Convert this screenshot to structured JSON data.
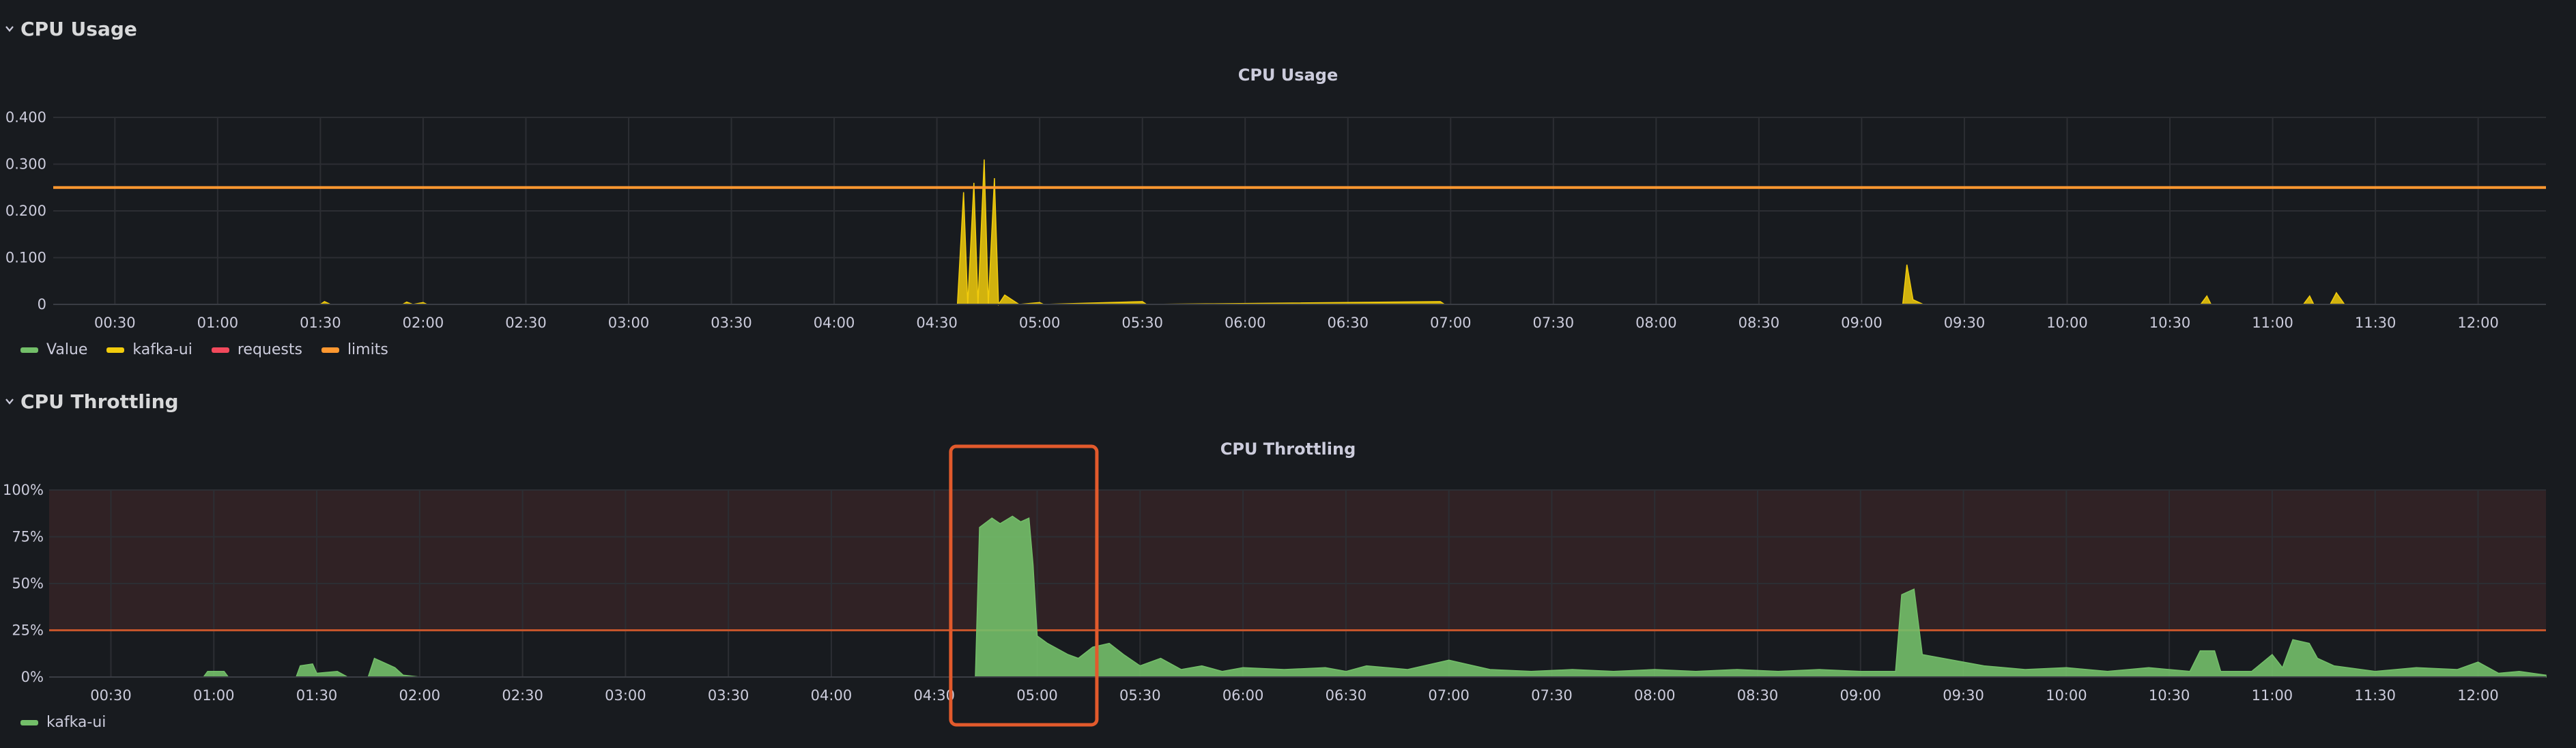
{
  "rows": [
    {
      "title": "CPU Usage"
    },
    {
      "title": "CPU Throttling"
    }
  ],
  "panels": [
    {
      "title": "CPU Usage",
      "legend": [
        {
          "label": "Value",
          "color": "#73bf69"
        },
        {
          "label": "kafka-ui",
          "color": "#f2cc0c"
        },
        {
          "label": "requests",
          "color": "#f2495c"
        },
        {
          "label": "limits",
          "color": "#ff9830"
        }
      ]
    },
    {
      "title": "CPU Throttling",
      "legend": [
        {
          "label": "kafka-ui",
          "color": "#73bf69"
        }
      ]
    }
  ],
  "chart_data": [
    {
      "type": "area",
      "title": "CPU Usage",
      "x_ticks": [
        "00:30",
        "01:00",
        "01:30",
        "02:00",
        "02:30",
        "03:00",
        "03:30",
        "04:00",
        "04:30",
        "05:00",
        "05:30",
        "06:00",
        "06:30",
        "07:00",
        "07:30",
        "08:00",
        "08:30",
        "09:00",
        "09:30",
        "10:00",
        "10:30",
        "11:00",
        "11:30",
        "12:00"
      ],
      "y_ticks": [
        "0",
        "0.100",
        "0.200",
        "0.300",
        "0.400"
      ],
      "ylim": [
        0,
        0.4
      ],
      "xlim_hours": [
        0.2,
        12.33
      ],
      "grid": true,
      "legend_placement": "bottom-left",
      "series": [
        {
          "name": "kafka-ui",
          "color": "#f2cc0c",
          "points": [
            [
              0.2,
              0
            ],
            [
              1.5,
              0
            ],
            [
              1.52,
              0.006
            ],
            [
              1.55,
              0
            ],
            [
              1.9,
              0
            ],
            [
              1.92,
              0.005
            ],
            [
              1.95,
              0
            ],
            [
              2.0,
              0.004
            ],
            [
              2.02,
              0
            ],
            [
              4.6,
              0
            ],
            [
              4.63,
              0.24
            ],
            [
              4.65,
              0
            ],
            [
              4.68,
              0.26
            ],
            [
              4.7,
              0
            ],
            [
              4.73,
              0.31
            ],
            [
              4.75,
              0
            ],
            [
              4.78,
              0.27
            ],
            [
              4.8,
              0
            ],
            [
              4.83,
              0.02
            ],
            [
              4.9,
              0
            ],
            [
              5.0,
              0.004
            ],
            [
              5.02,
              0
            ],
            [
              5.5,
              0.006
            ],
            [
              5.52,
              0
            ],
            [
              6.95,
              0.006
            ],
            [
              6.97,
              0
            ],
            [
              9.2,
              0
            ],
            [
              9.22,
              0.085
            ],
            [
              9.25,
              0.01
            ],
            [
              9.3,
              0
            ],
            [
              10.65,
              0
            ],
            [
              10.68,
              0.018
            ],
            [
              10.7,
              0
            ],
            [
              11.15,
              0
            ],
            [
              11.18,
              0.018
            ],
            [
              11.2,
              0
            ],
            [
              11.28,
              0
            ],
            [
              11.31,
              0.025
            ],
            [
              11.35,
              0
            ],
            [
              12.33,
              0
            ]
          ]
        },
        {
          "name": "limits",
          "color": "#ff9830",
          "points": [
            [
              0.2,
              0.25
            ],
            [
              12.33,
              0.25
            ]
          ]
        }
      ]
    },
    {
      "type": "area",
      "title": "CPU Throttling",
      "x_ticks": [
        "00:30",
        "01:00",
        "01:30",
        "02:00",
        "02:30",
        "03:00",
        "03:30",
        "04:00",
        "04:30",
        "05:00",
        "05:30",
        "06:00",
        "06:30",
        "07:00",
        "07:30",
        "08:00",
        "08:30",
        "09:00",
        "09:30",
        "10:00",
        "10:30",
        "11:00",
        "11:30",
        "12:00"
      ],
      "y_ticks": [
        "0%",
        "25%",
        "50%",
        "75%",
        "100%"
      ],
      "ylim": [
        0,
        100
      ],
      "xlim_hours": [
        0.2,
        12.33
      ],
      "threshold": 25,
      "grid": true,
      "legend_placement": "bottom-left",
      "highlight_range_hours": [
        4.6,
        5.27
      ],
      "series": [
        {
          "name": "kafka-ui",
          "color": "#73bf69",
          "points": [
            [
              0.2,
              0
            ],
            [
              0.95,
              0
            ],
            [
              0.97,
              3
            ],
            [
              1.05,
              3
            ],
            [
              1.07,
              0
            ],
            [
              1.4,
              0
            ],
            [
              1.42,
              6
            ],
            [
              1.48,
              7
            ],
            [
              1.5,
              2
            ],
            [
              1.6,
              3
            ],
            [
              1.65,
              0
            ],
            [
              1.75,
              0
            ],
            [
              1.78,
              10
            ],
            [
              1.82,
              8
            ],
            [
              1.88,
              5
            ],
            [
              1.92,
              1
            ],
            [
              2.0,
              0
            ],
            [
              4.7,
              0
            ],
            [
              4.72,
              80
            ],
            [
              4.78,
              85
            ],
            [
              4.82,
              82
            ],
            [
              4.88,
              86
            ],
            [
              4.92,
              83
            ],
            [
              4.96,
              85
            ],
            [
              4.98,
              60
            ],
            [
              5.0,
              22
            ],
            [
              5.05,
              18
            ],
            [
              5.1,
              15
            ],
            [
              5.15,
              12
            ],
            [
              5.2,
              10
            ],
            [
              5.27,
              16
            ],
            [
              5.35,
              18
            ],
            [
              5.42,
              12
            ],
            [
              5.5,
              6
            ],
            [
              5.6,
              10
            ],
            [
              5.7,
              4
            ],
            [
              5.8,
              6
            ],
            [
              5.9,
              3
            ],
            [
              6.0,
              5
            ],
            [
              6.2,
              4
            ],
            [
              6.4,
              5
            ],
            [
              6.5,
              3
            ],
            [
              6.6,
              6
            ],
            [
              6.8,
              4
            ],
            [
              7.0,
              9
            ],
            [
              7.2,
              4
            ],
            [
              7.4,
              3
            ],
            [
              7.6,
              4
            ],
            [
              7.8,
              3
            ],
            [
              8.0,
              4
            ],
            [
              8.2,
              3
            ],
            [
              8.4,
              4
            ],
            [
              8.6,
              3
            ],
            [
              8.8,
              4
            ],
            [
              9.0,
              3
            ],
            [
              9.17,
              3
            ],
            [
              9.2,
              44
            ],
            [
              9.26,
              47
            ],
            [
              9.3,
              12
            ],
            [
              9.4,
              10
            ],
            [
              9.5,
              8
            ],
            [
              9.6,
              6
            ],
            [
              9.8,
              4
            ],
            [
              10.0,
              5
            ],
            [
              10.2,
              3
            ],
            [
              10.4,
              5
            ],
            [
              10.6,
              3
            ],
            [
              10.65,
              14
            ],
            [
              10.72,
              14
            ],
            [
              10.75,
              3
            ],
            [
              10.9,
              3
            ],
            [
              11.0,
              12
            ],
            [
              11.05,
              5
            ],
            [
              11.1,
              20
            ],
            [
              11.18,
              18
            ],
            [
              11.22,
              10
            ],
            [
              11.3,
              6
            ],
            [
              11.5,
              3
            ],
            [
              11.7,
              5
            ],
            [
              11.9,
              4
            ],
            [
              12.0,
              8
            ],
            [
              12.1,
              2
            ],
            [
              12.2,
              3
            ],
            [
              12.33,
              1
            ]
          ]
        }
      ]
    }
  ]
}
